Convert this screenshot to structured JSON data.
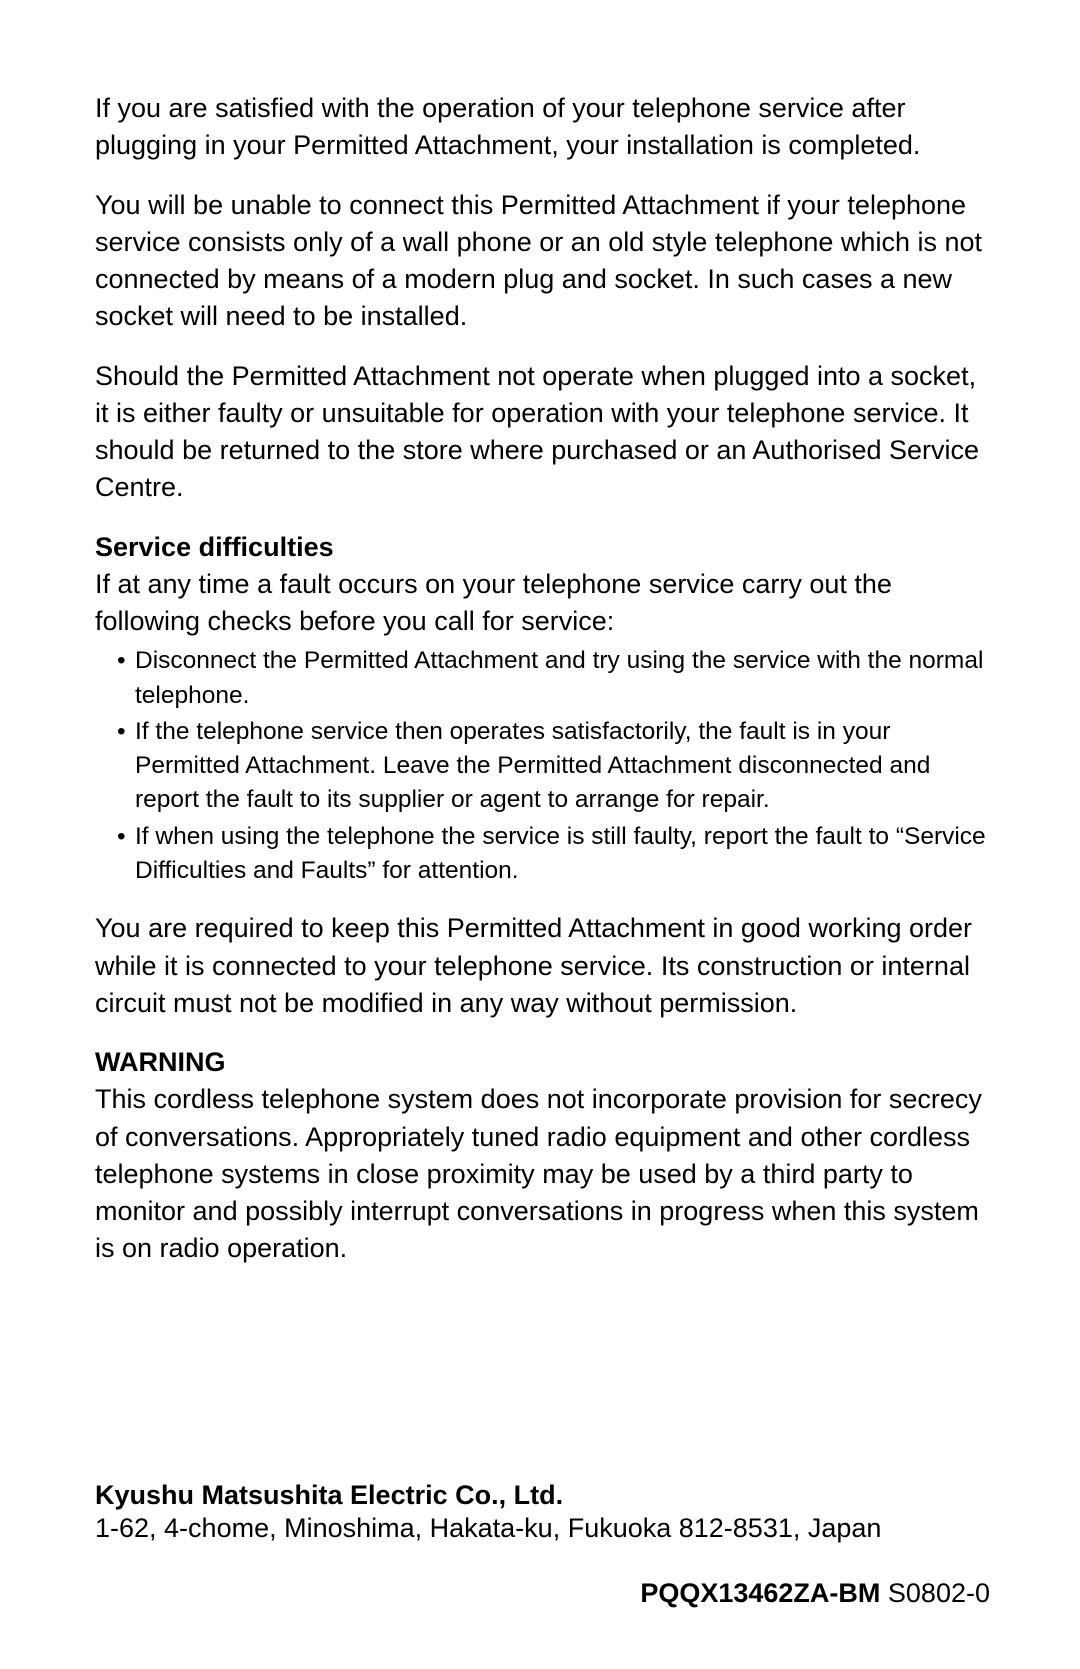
{
  "colors": {
    "background": "#ffffff",
    "text": "#000000"
  },
  "typography": {
    "body_fontsize": 27,
    "list_fontsize": 24.5,
    "line_height": 1.38,
    "font_family": "Arial, Helvetica, sans-serif"
  },
  "paragraphs": {
    "p1": "If you are satisfied with the operation of your telephone service after plugging in your Permitted Attachment, your installation is completed.",
    "p2": "You will be unable to connect this Permitted Attachment if your telephone service consists only of a wall phone or an old style telephone which is not connected by means of a modern plug and socket. In such cases a new socket will need to be installed.",
    "p3": "Should the Permitted Attachment not operate when plugged into a socket, it is either faulty or unsuitable for operation with your telephone service. It should be returned to the store where purchased or an Authorised Service Centre."
  },
  "service": {
    "heading": "Service difficulties",
    "intro": "If at any time a fault occurs on your telephone service carry out the following checks before you call for service:",
    "items": [
      "Disconnect the Permitted Attachment and try using the service with the normal telephone.",
      "If the telephone service then operates satisfactorily, the fault is in your Permitted Attachment. Leave the Permitted Attachment disconnected and report the fault to its supplier or agent to arrange for repair.",
      "If when using the telephone the service is still faulty, report the fault to “Service Difficulties and Faults” for attention."
    ],
    "outro": "You are required to keep this Permitted Attachment in good working order while it is connected to your telephone service. Its construction or internal circuit must not be modified in any way without permission."
  },
  "warning": {
    "heading": "WARNING",
    "text": "This cordless telephone system does not incorporate provision for secrecy of conversations. Appropriately tuned radio equipment and other cordless telephone systems in close proximity may be used by a third party to monitor and possibly interrupt conversations in progress when this system is on radio operation."
  },
  "footer": {
    "company": "Kyushu Matsushita Electric Co., Ltd.",
    "address": "1-62, 4-chome, Minoshima, Hakata-ku, Fukuoka 812-8531, Japan",
    "docnum_bold": "PQQX13462ZA-BM",
    "docnum_rest": " S0802-0"
  }
}
